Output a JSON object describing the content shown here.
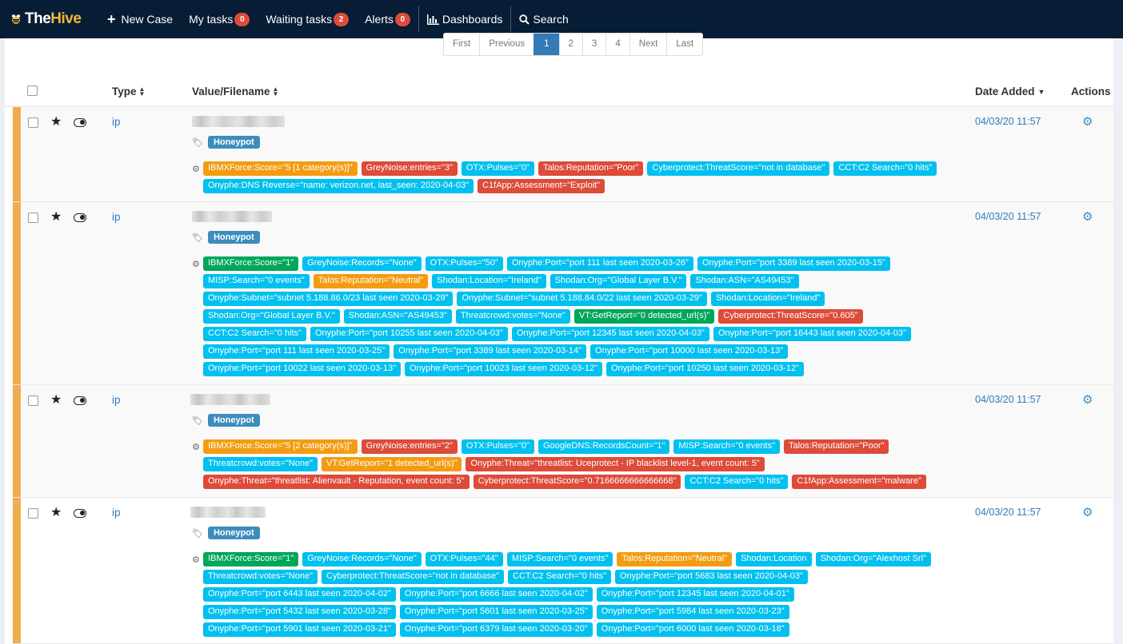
{
  "nav": {
    "logo_a": "The",
    "logo_b": "Hive",
    "new_case": "New Case",
    "my_tasks": "My tasks",
    "my_tasks_count": "0",
    "waiting_tasks": "Waiting tasks",
    "waiting_tasks_count": "2",
    "alerts": "Alerts",
    "alerts_count": "0",
    "dashboards": "Dashboards",
    "search": "Search"
  },
  "pager": {
    "first": "First",
    "previous": "Previous",
    "pages": [
      "1",
      "2",
      "3",
      "4"
    ],
    "next": "Next",
    "last": "Last",
    "active": "1"
  },
  "table": {
    "headers": {
      "type": "Type",
      "value": "Value/Filename",
      "date": "Date Added",
      "actions": "Actions"
    },
    "rows": [
      {
        "type": "ip",
        "tag": "Honeypot",
        "date": "04/03/20 11:57",
        "reports": [
          [
            [
              "warning",
              "IBMXForce:Score=\"5 [1 category(s)]\""
            ],
            [
              "danger",
              "GreyNoise:entries=\"3\""
            ],
            [
              "info",
              "OTX:Pulses=\"0\""
            ],
            [
              "danger",
              "Talos:Reputation=\"Poor\""
            ],
            [
              "info",
              "Cyberprotect:ThreatScore=\"not in database\""
            ],
            [
              "info",
              "CCT:C2 Search=\"0 hits\""
            ]
          ],
          [
            [
              "info",
              "Onyphe:DNS Reverse=\"name: verizon.net, last_seen: 2020-04-03\""
            ],
            [
              "danger",
              "C1fApp:Assessment=\"Exploit\""
            ]
          ]
        ]
      },
      {
        "type": "ip",
        "tag": "Honeypot",
        "date": "04/03/20 11:57",
        "reports": [
          [
            [
              "success",
              "IBMXForce:Score=\"1\""
            ],
            [
              "info",
              "GreyNoise:Records=\"None\""
            ],
            [
              "info",
              "OTX:Pulses=\"50\""
            ],
            [
              "info",
              "Onyphe:Port=\"port 111 last seen 2020-03-26\""
            ],
            [
              "info",
              "Onyphe:Port=\"port 3389 last seen 2020-03-15\""
            ]
          ],
          [
            [
              "info",
              "MISP:Search=\"0 events\""
            ],
            [
              "warning",
              "Talos:Reputation=\"Neutral\""
            ],
            [
              "info",
              "Shodan:Location=\"Ireland\""
            ],
            [
              "info",
              "Shodan:Org=\"Global Layer B.V.\""
            ],
            [
              "info",
              "Shodan:ASN=\"AS49453\""
            ]
          ],
          [
            [
              "info",
              "Onyphe:Subnet=\"subnet 5.188.86.0/23 last seen 2020-03-29\""
            ],
            [
              "info",
              "Onyphe:Subnet=\"subnet 5.188.84.0/22 last seen 2020-03-29\""
            ],
            [
              "info",
              "Shodan:Location=\"Ireland\""
            ]
          ],
          [
            [
              "info",
              "Shodan:Org=\"Global Layer B.V.\""
            ],
            [
              "info",
              "Shodan:ASN=\"AS49453\""
            ],
            [
              "info",
              "Threatcrowd:votes=\"None\""
            ],
            [
              "success",
              "VT:GetReport=\"0 detected_url(s)\""
            ],
            [
              "danger",
              "Cyberprotect:ThreatScore=\"0.605\""
            ]
          ],
          [
            [
              "info",
              "CCT:C2 Search=\"0 hits\""
            ],
            [
              "info",
              "Onyphe:Port=\"port 10255 last seen 2020-04-03\""
            ],
            [
              "info",
              "Onyphe:Port=\"port 12345 last seen 2020-04-03\""
            ],
            [
              "info",
              "Onyphe:Port=\"port 16443 last seen 2020-04-03\""
            ]
          ],
          [
            [
              "info",
              "Onyphe:Port=\"port 111 last seen 2020-03-25\""
            ],
            [
              "info",
              "Onyphe:Port=\"port 3389 last seen 2020-03-14\""
            ],
            [
              "info",
              "Onyphe:Port=\"port 10000 last seen 2020-03-13\""
            ]
          ],
          [
            [
              "info",
              "Onyphe:Port=\"port 10022 last seen 2020-03-13\""
            ],
            [
              "info",
              "Onyphe:Port=\"port 10023 last seen 2020-03-12\""
            ],
            [
              "info",
              "Onyphe:Port=\"port 10250 last seen 2020-03-12\""
            ]
          ]
        ]
      },
      {
        "type": "ip",
        "tag": "Honeypot",
        "date": "04/03/20 11:57",
        "reports": [
          [
            [
              "warning",
              "IBMXForce:Score=\"5 [2 category(s)]\""
            ],
            [
              "danger",
              "GreyNoise:entries=\"2\""
            ],
            [
              "info",
              "OTX:Pulses=\"0\""
            ],
            [
              "info",
              "GoogleDNS:RecordsCount=\"1\""
            ],
            [
              "info",
              "MISP:Search=\"0 events\""
            ],
            [
              "danger",
              "Talos:Reputation=\"Poor\""
            ]
          ],
          [
            [
              "info",
              "Threatcrowd:votes=\"None\""
            ],
            [
              "warning",
              "VT:GetReport=\"1 detected_url(s)\""
            ],
            [
              "danger",
              "Onyphe:Threat=\"threatlist: Uceprotect - IP blacklist level-1, event count: 5\""
            ]
          ],
          [
            [
              "danger",
              "Onyphe:Threat=\"threatlist: Alienvault - Reputation, event count: 5\""
            ],
            [
              "danger",
              "Cyberprotect:ThreatScore=\"0.7166666666666668\""
            ],
            [
              "info",
              "CCT:C2 Search=\"0 hits\""
            ],
            [
              "danger",
              "C1fApp:Assessment=\"malware\""
            ]
          ]
        ]
      },
      {
        "type": "ip",
        "tag": "Honeypot",
        "date": "04/03/20 11:57",
        "reports": [
          [
            [
              "success",
              "IBMXForce:Score=\"1\""
            ],
            [
              "info",
              "GreyNoise:Records=\"None\""
            ],
            [
              "info",
              "OTX:Pulses=\"44\""
            ],
            [
              "info",
              "MISP:Search=\"0 events\""
            ],
            [
              "warning",
              "Talos:Reputation=\"Neutral\""
            ],
            [
              "info",
              "Shodan:Location"
            ],
            [
              "info",
              "Shodan:Org=\"Alexhost Srl\""
            ]
          ],
          [
            [
              "info",
              "Threatcrowd:votes=\"None\""
            ],
            [
              "info",
              "Cyberprotect:ThreatScore=\"not in database\""
            ],
            [
              "info",
              "CCT:C2 Search=\"0 hits\""
            ],
            [
              "info",
              "Onyphe:Port=\"port 5683 last seen 2020-04-03\""
            ]
          ],
          [
            [
              "info",
              "Onyphe:Port=\"port 6443 last seen 2020-04-02\""
            ],
            [
              "info",
              "Onyphe:Port=\"port 6666 last seen 2020-04-02\""
            ],
            [
              "info",
              "Onyphe:Port=\"port 12345 last seen 2020-04-01\""
            ]
          ],
          [
            [
              "info",
              "Onyphe:Port=\"port 5432 last seen 2020-03-28\""
            ],
            [
              "info",
              "Onyphe:Port=\"port 5601 last seen 2020-03-25\""
            ],
            [
              "info",
              "Onyphe:Port=\"port 5984 last seen 2020-03-23\""
            ]
          ],
          [
            [
              "info",
              "Onyphe:Port=\"port 5901 last seen 2020-03-21\""
            ],
            [
              "info",
              "Onyphe:Port=\"port 6379 last seen 2020-03-20\""
            ],
            [
              "info",
              "Onyphe:Port=\"port 6000 last seen 2020-03-18\""
            ]
          ]
        ]
      }
    ]
  }
}
